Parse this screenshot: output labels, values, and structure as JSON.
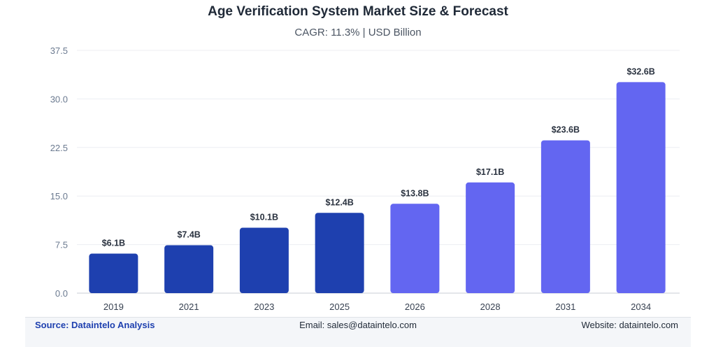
{
  "chart_data": {
    "type": "bar",
    "title": "Age Verification System Market Size & Forecast",
    "subtitle": "CAGR: 11.3% | USD Billion",
    "categories": [
      "2019",
      "2021",
      "2023",
      "2025",
      "2026",
      "2028",
      "2031",
      "2034"
    ],
    "values": [
      6.1,
      7.4,
      10.1,
      12.4,
      13.8,
      17.1,
      23.6,
      32.6
    ],
    "data_labels": [
      "$6.1B",
      "$7.4B",
      "$10.1B",
      "$12.4B",
      "$13.8B",
      "$17.1B",
      "$23.6B",
      "$32.6B"
    ],
    "ylim": [
      0,
      37.5
    ],
    "yticks": [
      "0.0",
      "7.5",
      "15.0",
      "22.5",
      "30.0",
      "37.5"
    ],
    "grid": true,
    "colors": {
      "historical": "#1e40af",
      "forecast": "#6366f1"
    },
    "historical_count": 4
  },
  "footer": {
    "source": "Source: Dataintelo Analysis",
    "email": "Email: sales@dataintelo.com",
    "website": "Website: dataintelo.com"
  }
}
